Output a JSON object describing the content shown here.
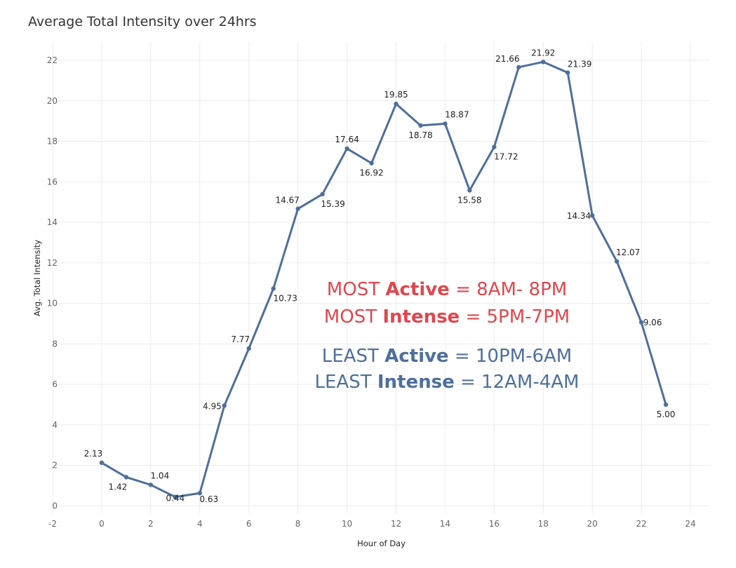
{
  "chart_data": {
    "type": "line",
    "title": "Average Total Intensity over 24hrs",
    "xlabel": "Hour of Day",
    "ylabel": "Avg. Total Intensity",
    "xlim": [
      -2,
      24.8
    ],
    "ylim": [
      -0.4,
      22.9
    ],
    "x_ticks": [
      -2,
      0,
      2,
      4,
      6,
      8,
      10,
      12,
      14,
      16,
      18,
      20,
      22,
      24
    ],
    "y_ticks": [
      0,
      2,
      4,
      6,
      8,
      10,
      12,
      14,
      16,
      18,
      20,
      22
    ],
    "grid": true,
    "series_color": "#4e6f9b",
    "x": [
      0,
      1,
      2,
      3,
      4,
      5,
      6,
      7,
      8,
      9,
      10,
      11,
      12,
      13,
      14,
      15,
      16,
      17,
      18,
      19,
      20,
      21,
      22,
      23
    ],
    "values": [
      2.13,
      1.42,
      1.04,
      0.44,
      0.63,
      4.95,
      7.77,
      10.73,
      14.67,
      15.39,
      17.64,
      16.92,
      19.85,
      18.78,
      18.87,
      15.58,
      17.72,
      21.66,
      21.92,
      21.39,
      14.34,
      12.07,
      9.06,
      5.0
    ],
    "data_labels": [
      "2.13",
      "1.42",
      "1.04",
      "0.44",
      "0.63",
      "4.95",
      "7.77",
      "10.73",
      "14.67",
      "15.39",
      "17.64",
      "16.92",
      "19.85",
      "18.78",
      "18.87",
      "15.58",
      "17.72",
      "21.66",
      "21.92",
      "21.39",
      "14.34",
      "12.07",
      "9.06",
      "5.00"
    ],
    "annotations": [
      {
        "color": "#e0474c",
        "pre": "MOST ",
        "bold": "Active",
        "post": " = 8AM- 8PM"
      },
      {
        "color": "#e0474c",
        "pre": "MOST ",
        "bold": "Intense",
        "post": " = 5PM-7PM"
      },
      {
        "color": "#4e6f9b",
        "pre": "LEAST ",
        "bold": "Active",
        "post": " = 10PM-6AM"
      },
      {
        "color": "#4e6f9b",
        "pre": "LEAST ",
        "bold": "Intense",
        "post": " = 12AM-4AM"
      }
    ]
  }
}
